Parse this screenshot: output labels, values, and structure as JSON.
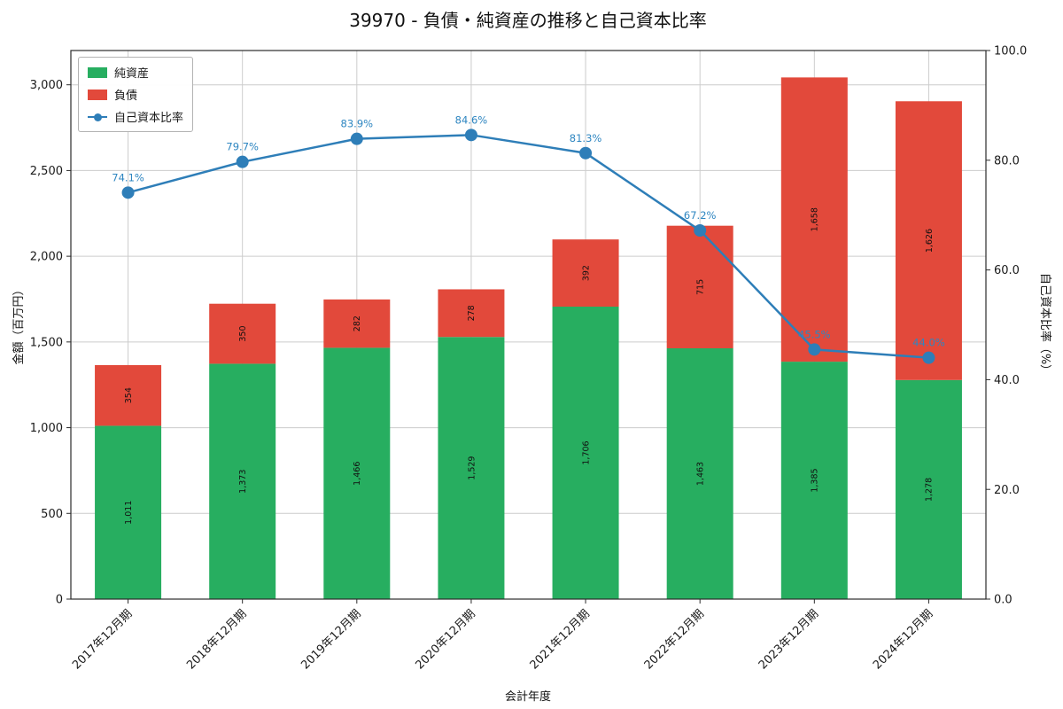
{
  "title": "39970 - 負債・純資産の推移と自己資本比率",
  "chart_data": {
    "type": "bar",
    "stacked": true,
    "xlabel": "会計年度",
    "ylabel_left": "金額（百万円）",
    "ylabel_right": "自己資本比率（%）",
    "ylim_left": [
      0,
      3200
    ],
    "ylim_right": [
      0,
      100
    ],
    "grid": true,
    "legend_position": "upper-left",
    "categories": [
      "2017年12月期",
      "2018年12月期",
      "2019年12月期",
      "2020年12月期",
      "2021年12月期",
      "2022年12月期",
      "2023年12月期",
      "2024年12月期"
    ],
    "series": [
      {
        "name": "純資産",
        "type": "bar",
        "color": "#27ae60",
        "values": [
          1011,
          1373,
          1466,
          1529,
          1706,
          1463,
          1385,
          1278
        ],
        "labels": [
          "1,011",
          "1,373",
          "1,466",
          "1,529",
          "1,706",
          "1,463",
          "1,385",
          "1,278"
        ]
      },
      {
        "name": "負債",
        "type": "bar",
        "color": "#e2493b",
        "values": [
          354,
          350,
          282,
          278,
          392,
          715,
          1658,
          1626
        ],
        "labels": [
          "354",
          "350",
          "282",
          "278",
          "392",
          "715",
          "1,658",
          "1,626"
        ]
      },
      {
        "name": "自己資本比率",
        "type": "line",
        "color": "#2e7eb8",
        "label_color": "#2e86c1",
        "axis": "right",
        "values": [
          74.1,
          79.7,
          83.9,
          84.6,
          81.3,
          67.2,
          45.5,
          44.0
        ],
        "labels": [
          "74.1%",
          "79.7%",
          "83.9%",
          "84.6%",
          "81.3%",
          "67.2%",
          "45.5%",
          "44.0%"
        ]
      }
    ],
    "yticks_left": [
      "0",
      "500",
      "1,000",
      "1,500",
      "2,000",
      "2,500",
      "3,000"
    ],
    "ytick_values_left": [
      0,
      500,
      1000,
      1500,
      2000,
      2500,
      3000
    ],
    "yticks_right": [
      "0.0",
      "20.0",
      "40.0",
      "60.0",
      "80.0",
      "100.0"
    ],
    "ytick_values_right": [
      0,
      20,
      40,
      60,
      80,
      100
    ]
  }
}
